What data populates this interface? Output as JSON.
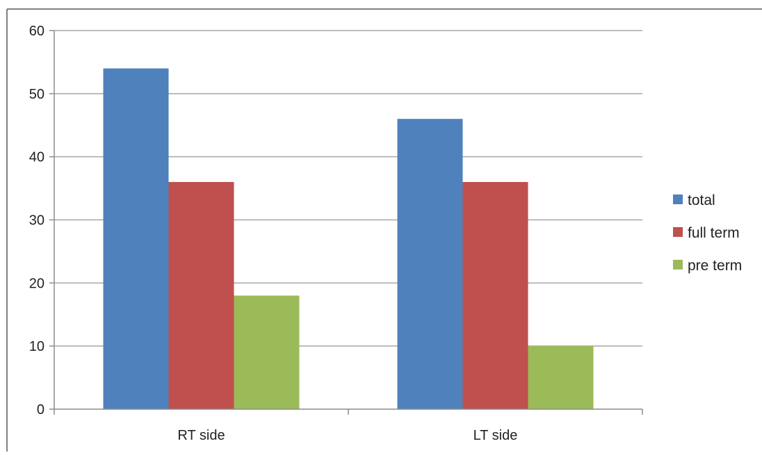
{
  "chart_data": {
    "type": "bar",
    "categories": [
      "RT side",
      "LT side"
    ],
    "series": [
      {
        "name": "total",
        "values": [
          54,
          46
        ],
        "color": "#4f81bd"
      },
      {
        "name": "full term",
        "values": [
          36,
          36
        ],
        "color": "#c0504d"
      },
      {
        "name": "pre term",
        "values": [
          18,
          10
        ],
        "color": "#9bbb59"
      }
    ],
    "ylim": [
      0,
      60
    ],
    "yticks": [
      0,
      10,
      20,
      30,
      40,
      50,
      60
    ],
    "grid": true,
    "legend_position": "right",
    "title": "",
    "xlabel": "",
    "ylabel": ""
  }
}
